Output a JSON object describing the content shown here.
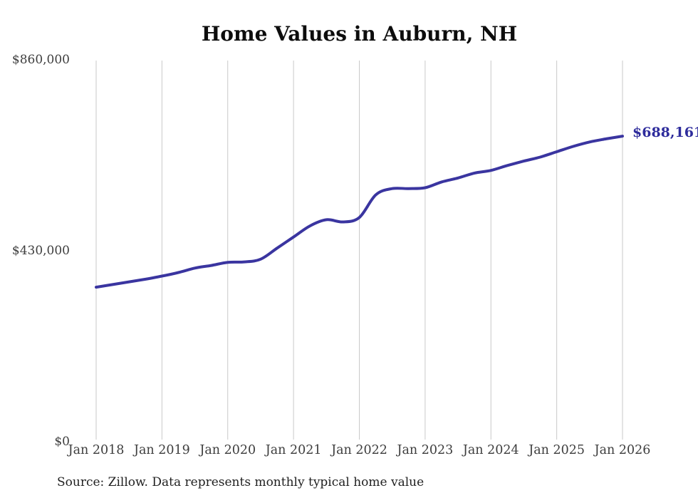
{
  "colors": {
    "background": "#ffffff",
    "line": "#3a35a0",
    "end_label": "#2e2c9c",
    "gridline": "#c9c9c9",
    "axis_text": "#3d3d3d",
    "title_text": "#0d0d0d"
  },
  "chart_data": {
    "type": "line",
    "title": "Home Values in Auburn, NH",
    "xlabel": "",
    "ylabel": "",
    "ylim": [
      0,
      860000
    ],
    "grid": "vertical-only",
    "legend": "none",
    "y_ticks": [
      {
        "label": "$0",
        "value": 0
      },
      {
        "label": "$430,000",
        "value": 430000
      },
      {
        "label": "$860,000",
        "value": 860000
      }
    ],
    "x_tick_labels": [
      "Jan 2018",
      "Jan 2019",
      "Jan 2020",
      "Jan 2021",
      "Jan 2022",
      "Jan 2023",
      "Jan 2024",
      "Jan 2025",
      "Jan 2026"
    ],
    "end_label": "$688,161",
    "final_value": 688161,
    "source_note": "Source: Zillow. Data represents monthly typical home value",
    "series": [
      {
        "name": "Typical home value",
        "color": "#3a35a0",
        "points": [
          {
            "month": "2018-01",
            "value": 348000
          },
          {
            "month": "2018-04",
            "value": 354000
          },
          {
            "month": "2018-07",
            "value": 360000
          },
          {
            "month": "2018-10",
            "value": 366000
          },
          {
            "month": "2019-01",
            "value": 373000
          },
          {
            "month": "2019-04",
            "value": 381000
          },
          {
            "month": "2019-07",
            "value": 391000
          },
          {
            "month": "2019-10",
            "value": 397000
          },
          {
            "month": "2020-01",
            "value": 404000
          },
          {
            "month": "2020-04",
            "value": 405000
          },
          {
            "month": "2020-07",
            "value": 411000
          },
          {
            "month": "2020-10",
            "value": 436000
          },
          {
            "month": "2021-01",
            "value": 461000
          },
          {
            "month": "2021-04",
            "value": 486000
          },
          {
            "month": "2021-07",
            "value": 500000
          },
          {
            "month": "2021-10",
            "value": 495000
          },
          {
            "month": "2022-01",
            "value": 505000
          },
          {
            "month": "2022-04",
            "value": 556000
          },
          {
            "month": "2022-07",
            "value": 570000
          },
          {
            "month": "2022-10",
            "value": 570000
          },
          {
            "month": "2023-01",
            "value": 572000
          },
          {
            "month": "2023-04",
            "value": 585000
          },
          {
            "month": "2023-07",
            "value": 594000
          },
          {
            "month": "2023-10",
            "value": 605000
          },
          {
            "month": "2024-01",
            "value": 611000
          },
          {
            "month": "2024-04",
            "value": 622000
          },
          {
            "month": "2024-07",
            "value": 632000
          },
          {
            "month": "2024-10",
            "value": 641000
          },
          {
            "month": "2025-01",
            "value": 653000
          },
          {
            "month": "2025-04",
            "value": 665000
          },
          {
            "month": "2025-07",
            "value": 675000
          },
          {
            "month": "2025-10",
            "value": 682000
          },
          {
            "month": "2026-01",
            "value": 688161
          }
        ]
      }
    ]
  }
}
